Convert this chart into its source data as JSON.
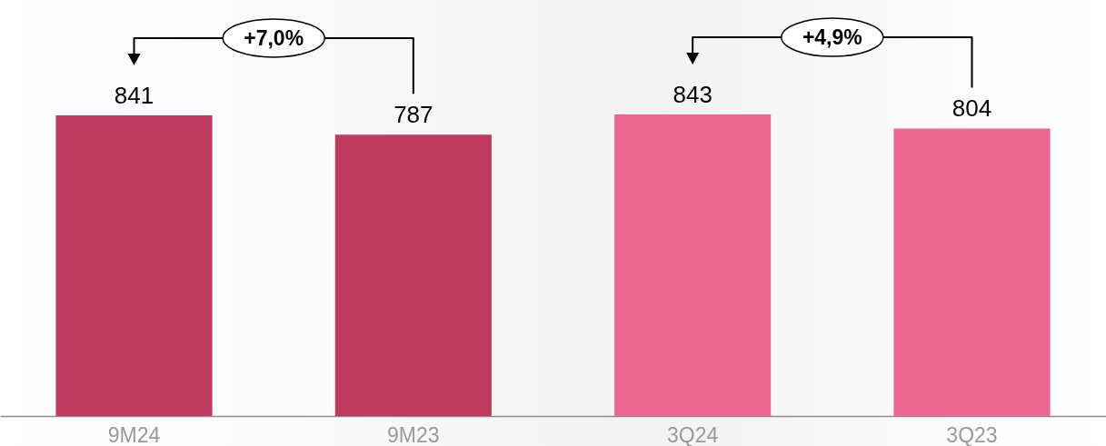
{
  "chart_data": {
    "type": "bar",
    "categories": [
      "9M24",
      "9M23",
      "3Q24",
      "3Q23"
    ],
    "values": [
      841,
      787,
      843,
      804
    ],
    "colors": [
      "#c0395f",
      "#c0395f",
      "#ec6892",
      "#ec6892"
    ],
    "data_labels": true,
    "annotations": [
      "+7,0%",
      "+4,9%"
    ]
  }
}
